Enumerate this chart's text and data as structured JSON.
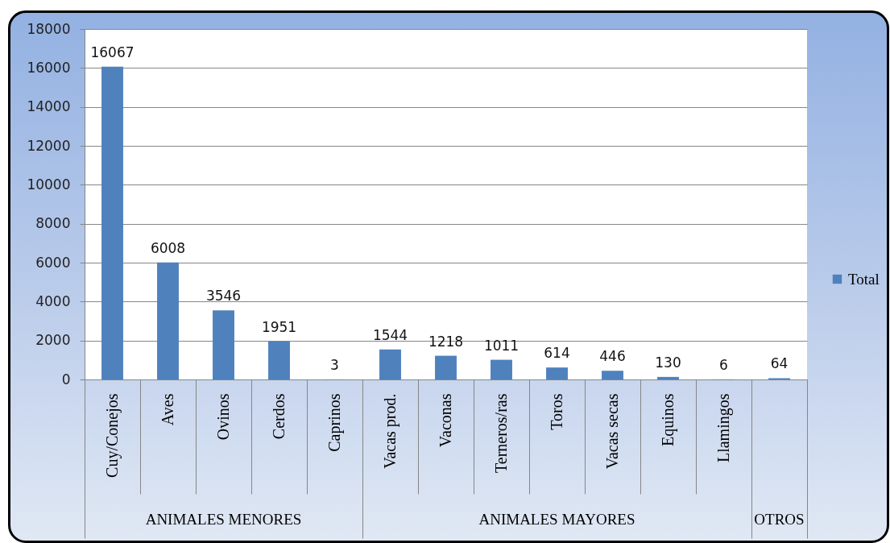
{
  "chart_data": {
    "type": "bar",
    "categories": [
      "Cuy/Conejos",
      "Aves",
      "Ovinos",
      "Cerdos",
      "Caprinos",
      "Vacas prod.",
      "Vaconas",
      "Terneros/ras",
      "Toros",
      "Vacas secas",
      "Equinos",
      "Llamingos",
      null
    ],
    "series": [
      {
        "name": "Total",
        "color": "#4f81bd",
        "values": [
          16067,
          6008,
          3546,
          1951,
          3,
          1544,
          1218,
          1011,
          614,
          446,
          130,
          6,
          64
        ]
      }
    ],
    "ylim": [
      0,
      18000
    ],
    "yticks": [
      0,
      2000,
      4000,
      6000,
      8000,
      10000,
      12000,
      14000,
      16000,
      18000
    ],
    "grid": "y",
    "legend": "right",
    "data_labels": true,
    "annotations": [
      "ANIMALES MENORES",
      "ANIMALES MAYORES",
      "OTROS"
    ]
  }
}
